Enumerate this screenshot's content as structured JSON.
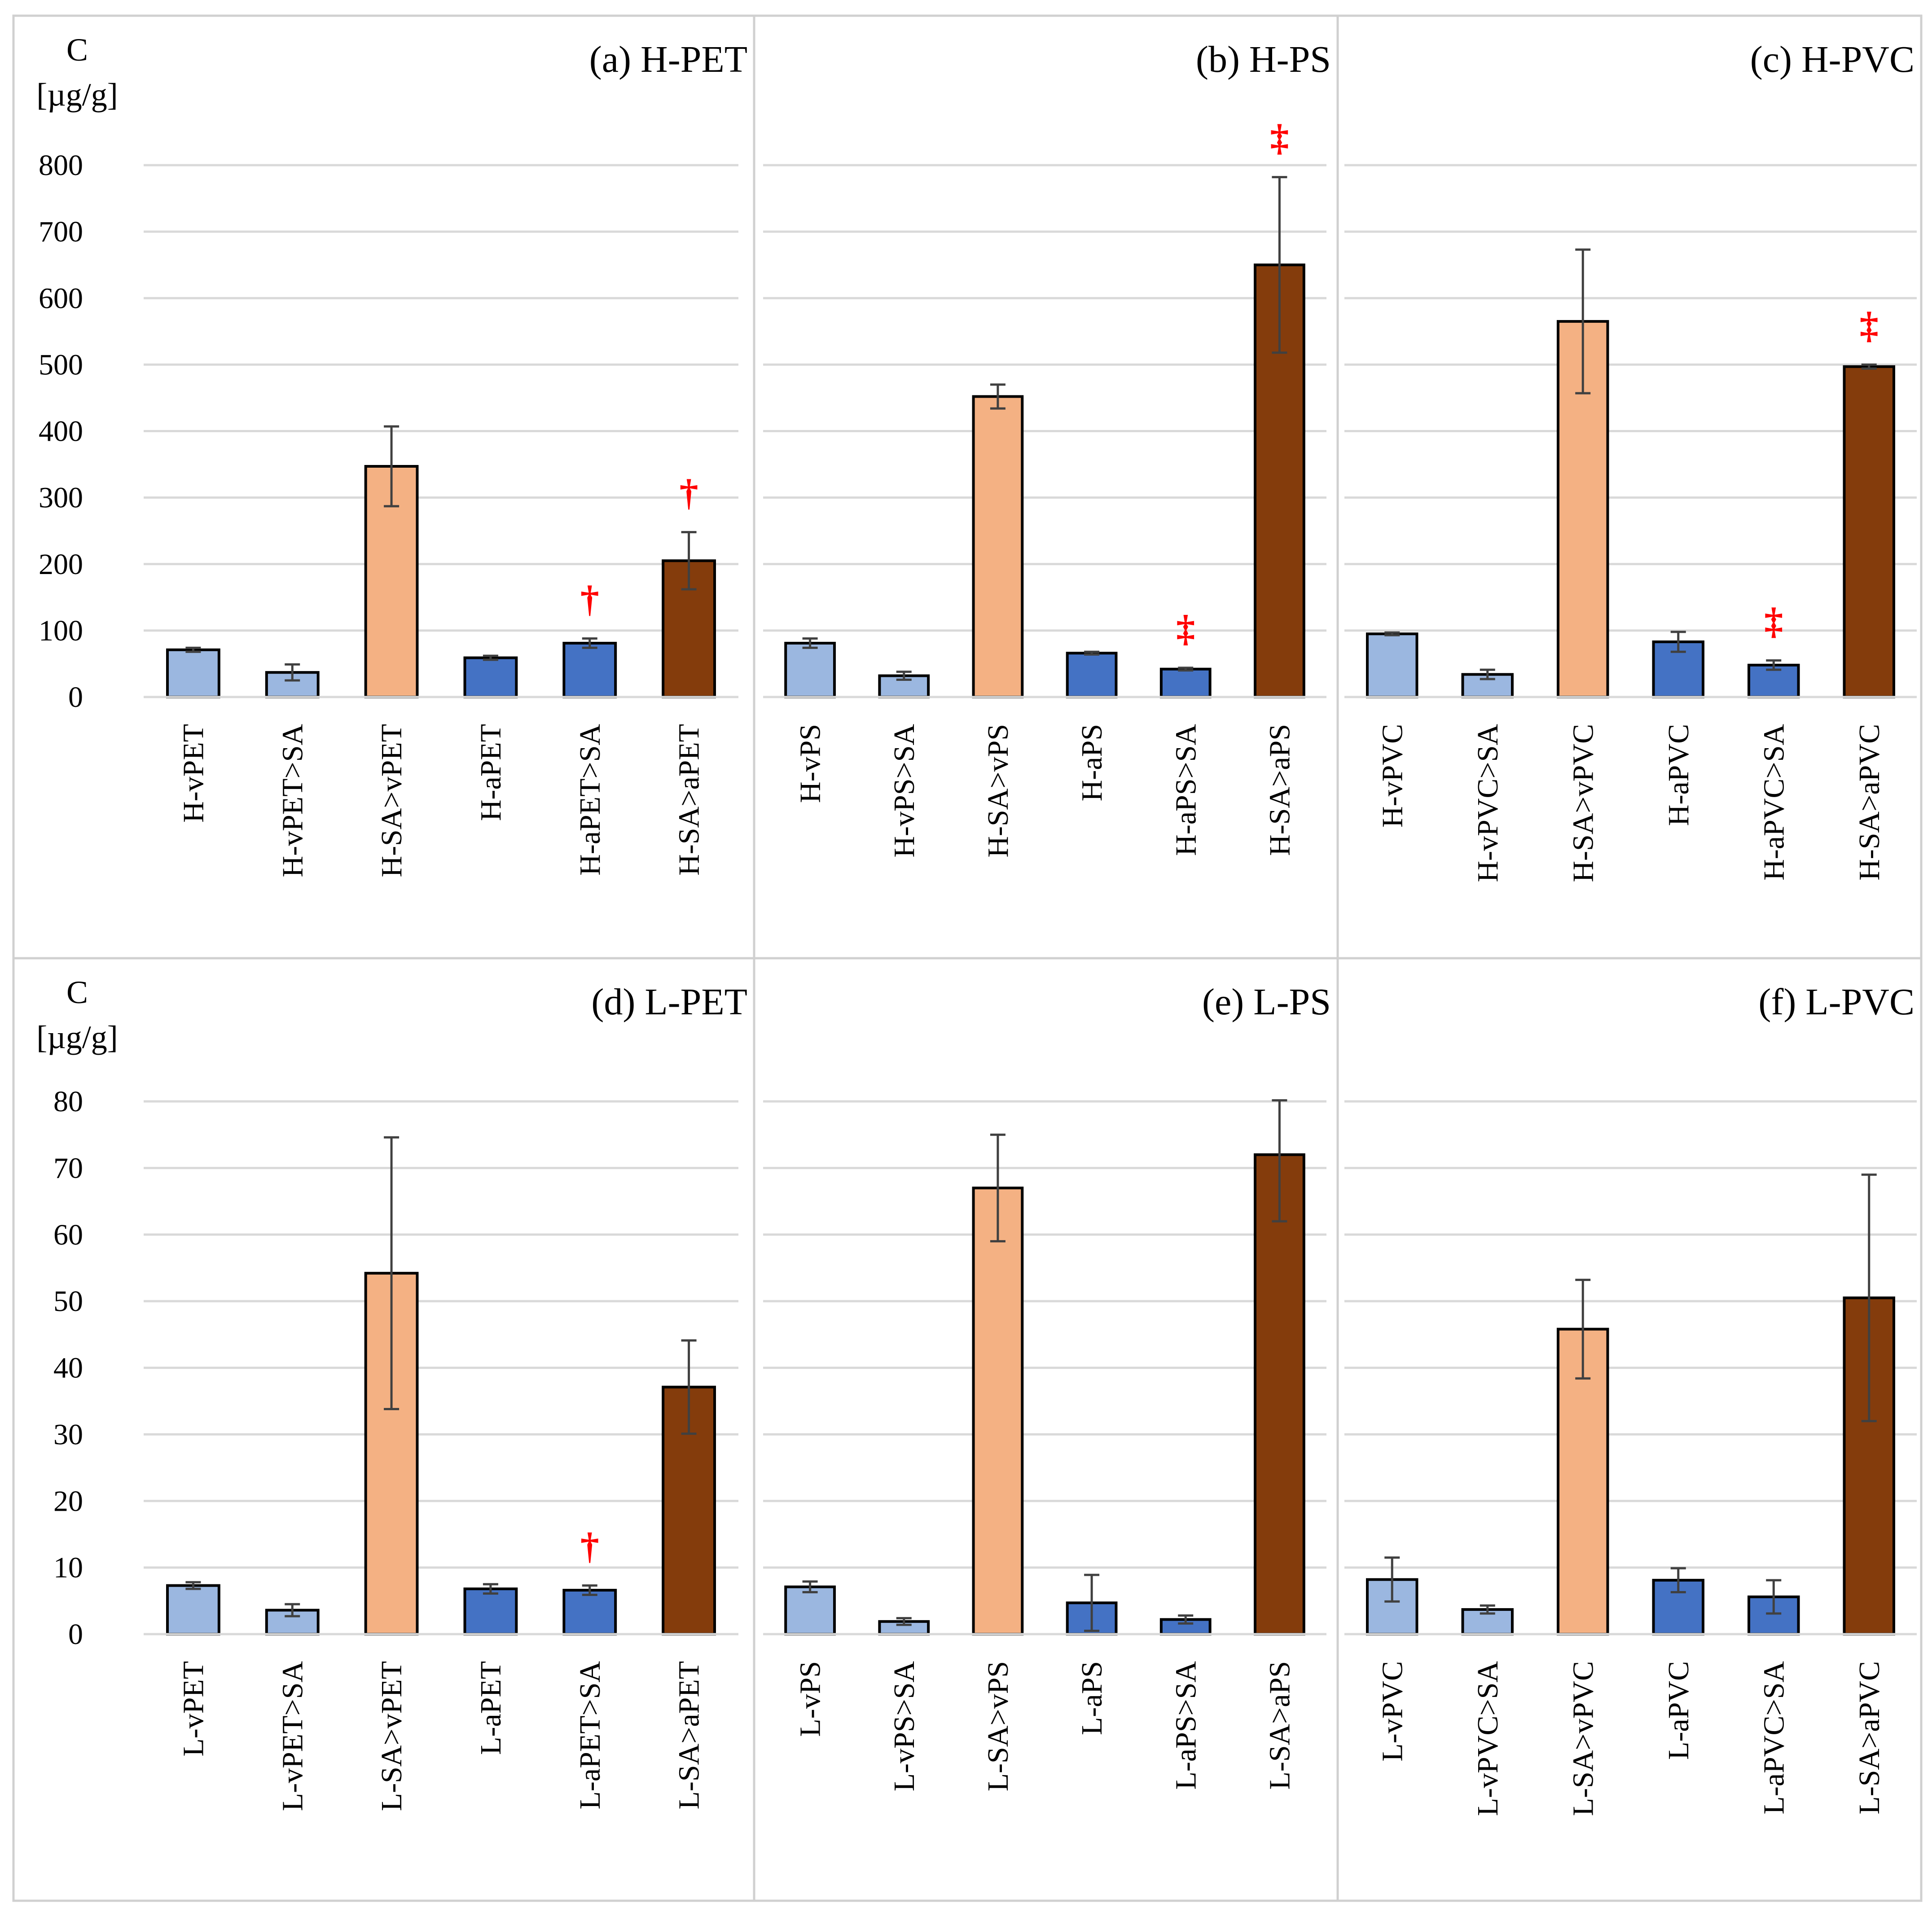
{
  "colors": {
    "light_blue": "#9BB7E0",
    "blue": "#4472C4",
    "peach": "#F4B183",
    "brown": "#843C0C",
    "marker": "#FF0000",
    "grid": "#D9D9D9",
    "error_bar": "#404040",
    "panel_border": "#D0D0D0"
  },
  "y_axis": {
    "symbol": "C",
    "unit": "[µg/g]"
  },
  "chart_data": [
    {
      "type": "bar",
      "title": "(a) H-PET",
      "ylim": [
        0,
        800
      ],
      "yticks": [
        0,
        100,
        200,
        300,
        400,
        500,
        600,
        700,
        800
      ],
      "categories": [
        "H-vPET",
        "H-vPET>SA",
        "H-SA>vPET",
        "H-aPET",
        "H-aPET>SA",
        "H-SA>aPET"
      ],
      "values": [
        71,
        37,
        347,
        59,
        81,
        205
      ],
      "errors": [
        3,
        12,
        60,
        3,
        7,
        43
      ],
      "bar_colors": [
        "light_blue",
        "light_blue",
        "peach",
        "blue",
        "blue",
        "brown"
      ],
      "markers": [
        "",
        "",
        "",
        "",
        "†",
        "†"
      ]
    },
    {
      "type": "bar",
      "title": "(b) H-PS",
      "ylim": [
        0,
        800
      ],
      "yticks": [
        0,
        100,
        200,
        300,
        400,
        500,
        600,
        700,
        800
      ],
      "categories": [
        "H-vPS",
        "H-vPS>SA",
        "H-SA>vPS",
        "H-aPS",
        "H-aPS>SA",
        "H-SA>aPS"
      ],
      "values": [
        81,
        32,
        452,
        66,
        42,
        650
      ],
      "errors": [
        7,
        6,
        18,
        2,
        2,
        132
      ],
      "bar_colors": [
        "light_blue",
        "light_blue",
        "peach",
        "blue",
        "blue",
        "brown"
      ],
      "markers": [
        "",
        "",
        "",
        "",
        "‡",
        "‡"
      ]
    },
    {
      "type": "bar",
      "title": "(c) H-PVC",
      "ylim": [
        0,
        800
      ],
      "yticks": [
        0,
        100,
        200,
        300,
        400,
        500,
        600,
        700,
        800
      ],
      "categories": [
        "H-vPVC",
        "H-vPVC>SA",
        "H-SA>vPVC",
        "H-aPVC",
        "H-aPVC>SA",
        "H-SA>aPVC"
      ],
      "values": [
        95,
        34,
        565,
        83,
        48,
        497
      ],
      "errors": [
        2,
        7,
        108,
        15,
        7,
        3
      ],
      "bar_colors": [
        "light_blue",
        "light_blue",
        "peach",
        "blue",
        "blue",
        "brown"
      ],
      "markers": [
        "",
        "",
        "",
        "",
        "‡",
        "‡"
      ]
    },
    {
      "type": "bar",
      "title": "(d) L-PET",
      "ylim": [
        0,
        80
      ],
      "yticks": [
        0,
        10,
        20,
        30,
        40,
        50,
        60,
        70,
        80
      ],
      "categories": [
        "L-vPET",
        "L-vPET>SA",
        "L-SA>vPET",
        "L-aPET",
        "L-aPET>SA",
        "L-SA>aPET"
      ],
      "values": [
        7.3,
        3.6,
        54.2,
        6.8,
        6.6,
        37.1
      ],
      "errors": [
        0.5,
        0.9,
        20.4,
        0.7,
        0.7,
        7.0
      ],
      "bar_colors": [
        "light_blue",
        "light_blue",
        "peach",
        "blue",
        "blue",
        "brown"
      ],
      "markers": [
        "",
        "",
        "",
        "",
        "†",
        ""
      ]
    },
    {
      "type": "bar",
      "title": "(e) L-PS",
      "ylim": [
        0,
        80
      ],
      "yticks": [
        0,
        10,
        20,
        30,
        40,
        50,
        60,
        70,
        80
      ],
      "categories": [
        "L-vPS",
        "L-vPS>SA",
        "L-SA>vPS",
        "L-aPS",
        "L-aPS>SA",
        "L-SA>aPS"
      ],
      "values": [
        7.1,
        1.9,
        67.0,
        4.7,
        2.2,
        72.0
      ],
      "errors": [
        0.8,
        0.5,
        8.0,
        4.2,
        0.6,
        10.0
      ],
      "bar_colors": [
        "light_blue",
        "light_blue",
        "peach",
        "blue",
        "blue",
        "brown"
      ],
      "markers": [
        "",
        "",
        "",
        "",
        "",
        ""
      ]
    },
    {
      "type": "bar",
      "title": "(f) L-PVC",
      "ylim": [
        0,
        80
      ],
      "yticks": [
        0,
        10,
        20,
        30,
        40,
        50,
        60,
        70,
        80
      ],
      "categories": [
        "L-vPVC",
        "L-vPVC>SA",
        "L-SA>vPVC",
        "L-aPVC",
        "L-aPVC>SA",
        "L-SA>aPVC"
      ],
      "values": [
        8.2,
        3.7,
        45.8,
        8.1,
        5.6,
        50.5
      ],
      "errors": [
        3.3,
        0.6,
        7.4,
        1.8,
        2.5,
        18.5
      ],
      "bar_colors": [
        "light_blue",
        "light_blue",
        "peach",
        "blue",
        "blue",
        "brown"
      ],
      "markers": [
        "",
        "",
        "",
        "",
        "",
        ""
      ]
    }
  ]
}
